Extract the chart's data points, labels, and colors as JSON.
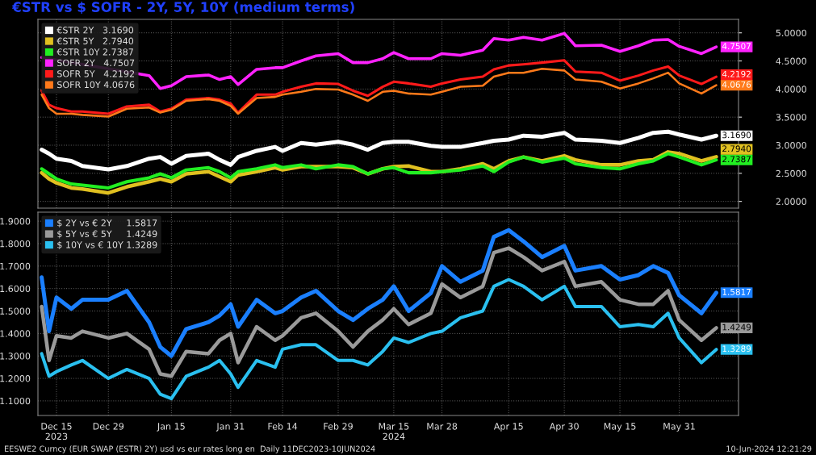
{
  "chart_data": [
    {
      "type": "line",
      "title": "€STR vs $ SOFR - 2Y, 5Y, 10Y (medium terms)",
      "tick_labels": "y",
      "grid": true,
      "legend": "top left",
      "x": [
        "2023-12-11",
        "2023-12-13",
        "2023-12-15",
        "2023-12-19",
        "2023-12-22",
        "2023-12-29",
        "2024-01-03",
        "2024-01-09",
        "2024-01-12",
        "2024-01-15",
        "2024-01-19",
        "2024-01-25",
        "2024-01-28",
        "2024-01-31",
        "2024-02-02",
        "2024-02-07",
        "2024-02-12",
        "2024-02-14",
        "2024-02-19",
        "2024-02-23",
        "2024-02-29",
        "2024-03-04",
        "2024-03-08",
        "2024-03-12",
        "2024-03-15",
        "2024-03-19",
        "2024-03-25",
        "2024-03-28",
        "2024-04-02",
        "2024-04-08",
        "2024-04-11",
        "2024-04-15",
        "2024-04-19",
        "2024-04-24",
        "2024-04-30",
        "2024-05-03",
        "2024-05-10",
        "2024-05-15",
        "2024-05-20",
        "2024-05-24",
        "2024-05-28",
        "2024-05-31",
        "2024-06-06",
        "2024-06-10"
      ],
      "xlim": [
        "2023-12-10",
        "2024-06-16"
      ],
      "xticks": [
        {
          "value": "2023-12-15",
          "label": null
        },
        {
          "value": "2023-12-29",
          "label": null
        },
        {
          "value": "2024-01-15",
          "label": null
        },
        {
          "value": "2024-01-31",
          "label": null
        },
        {
          "value": "2024-02-14",
          "label": null
        },
        {
          "value": "2024-02-29",
          "label": null
        },
        {
          "value": "2024-03-15",
          "label": null
        },
        {
          "value": "2024-03-28",
          "label": null
        },
        {
          "value": "2024-04-15",
          "label": null
        },
        {
          "value": "2024-04-30",
          "label": null
        },
        {
          "value": "2024-05-15",
          "label": null
        },
        {
          "value": "2024-05-31",
          "label": null
        }
      ],
      "ylim": [
        1.88,
        5.24
      ],
      "yticks": [
        {
          "value": 2.0,
          "label": "2.0000"
        },
        {
          "value": 2.5,
          "label": "2.5000"
        },
        {
          "value": 3.0,
          "label": "3.0000"
        },
        {
          "value": 3.5,
          "label": "3.5000"
        },
        {
          "value": 4.0,
          "label": "4.0000"
        },
        {
          "value": 4.5,
          "label": "4.5000"
        },
        {
          "value": 5.0,
          "label": "5.0000"
        }
      ],
      "series": [
        {
          "name": "€STR 2Y   3.1690",
          "color": "#ffffff",
          "values": [
            2.92,
            2.85,
            2.76,
            2.72,
            2.63,
            2.57,
            2.63,
            2.76,
            2.79,
            2.67,
            2.81,
            2.85,
            2.74,
            2.65,
            2.79,
            2.9,
            2.97,
            2.9,
            3.04,
            3.01,
            3.06,
            3.01,
            2.92,
            3.04,
            3.06,
            3.06,
            2.99,
            2.97,
            2.97,
            3.04,
            3.08,
            3.1,
            3.17,
            3.15,
            3.22,
            3.1,
            3.08,
            3.04,
            3.13,
            3.22,
            3.24,
            3.19,
            3.1,
            3.169
          ],
          "value_labels": [
            null,
            null,
            null,
            null,
            null,
            null,
            null,
            null,
            null,
            null,
            null,
            null,
            null,
            null,
            null,
            null,
            null,
            null,
            null,
            null,
            null,
            null,
            null,
            null,
            null,
            null,
            null,
            null,
            null,
            null,
            null,
            null,
            null,
            null,
            null,
            null,
            null,
            null,
            null,
            null,
            null,
            null,
            null,
            "3.1690"
          ]
        },
        {
          "name": "€STR 5Y   2.7940",
          "color": "#e0c020",
          "values": [
            2.51,
            2.4,
            2.33,
            2.24,
            2.22,
            2.15,
            2.26,
            2.35,
            2.4,
            2.35,
            2.49,
            2.53,
            2.44,
            2.35,
            2.47,
            2.53,
            2.6,
            2.56,
            2.62,
            2.62,
            2.62,
            2.6,
            2.49,
            2.58,
            2.62,
            2.63,
            2.53,
            2.53,
            2.58,
            2.67,
            2.58,
            2.72,
            2.79,
            2.72,
            2.81,
            2.74,
            2.65,
            2.65,
            2.72,
            2.74,
            2.88,
            2.85,
            2.72,
            2.794
          ],
          "value_labels": [
            null,
            null,
            null,
            null,
            null,
            null,
            null,
            null,
            null,
            null,
            null,
            null,
            null,
            null,
            null,
            null,
            null,
            null,
            null,
            null,
            null,
            null,
            null,
            null,
            null,
            null,
            null,
            null,
            null,
            null,
            null,
            null,
            null,
            null,
            null,
            null,
            null,
            null,
            null,
            null,
            null,
            null,
            null,
            "2.7940"
          ]
        },
        {
          "name": "€STR 10Y 2.7387",
          "color": "#22ee22",
          "values": [
            2.58,
            2.49,
            2.4,
            2.31,
            2.29,
            2.24,
            2.35,
            2.42,
            2.49,
            2.42,
            2.56,
            2.6,
            2.53,
            2.42,
            2.53,
            2.58,
            2.65,
            2.6,
            2.65,
            2.58,
            2.65,
            2.62,
            2.49,
            2.58,
            2.6,
            2.51,
            2.51,
            2.53,
            2.56,
            2.63,
            2.53,
            2.7,
            2.79,
            2.7,
            2.77,
            2.67,
            2.6,
            2.58,
            2.67,
            2.72,
            2.85,
            2.79,
            2.65,
            2.7387
          ],
          "value_labels": [
            null,
            null,
            null,
            null,
            null,
            null,
            null,
            null,
            null,
            null,
            null,
            null,
            null,
            null,
            null,
            null,
            null,
            null,
            null,
            null,
            null,
            null,
            null,
            null,
            null,
            null,
            null,
            null,
            null,
            null,
            null,
            null,
            null,
            null,
            null,
            null,
            null,
            null,
            null,
            null,
            null,
            null,
            null,
            "2.7387"
          ]
        },
        {
          "name": "SOFR 2Y   4.7507",
          "color": "#ff22ff",
          "values": [
            4.56,
            null,
            null,
            null,
            null,
            null,
            null,
            4.24,
            4.01,
            4.06,
            4.22,
            4.25,
            4.17,
            4.22,
            4.08,
            4.35,
            4.38,
            4.38,
            4.5,
            4.59,
            4.63,
            4.47,
            4.47,
            4.54,
            4.65,
            4.54,
            4.54,
            4.63,
            4.6,
            4.69,
            4.9,
            4.87,
            4.92,
            4.87,
            4.99,
            4.77,
            4.78,
            4.67,
            4.77,
            4.87,
            4.88,
            4.76,
            4.63,
            4.7507
          ],
          "value_labels": [
            null,
            null,
            null,
            null,
            null,
            null,
            null,
            null,
            null,
            null,
            null,
            null,
            null,
            null,
            null,
            null,
            null,
            null,
            null,
            null,
            null,
            null,
            null,
            null,
            null,
            null,
            null,
            null,
            null,
            null,
            null,
            null,
            null,
            null,
            null,
            null,
            null,
            null,
            null,
            null,
            null,
            null,
            null,
            "4.7507"
          ]
        },
        {
          "name": "SOFR 5Y   4.2192",
          "color": "#ff1a1a",
          "values": [
            3.97,
            3.72,
            3.66,
            3.6,
            3.6,
            3.56,
            3.69,
            3.72,
            3.6,
            3.65,
            3.81,
            3.84,
            3.81,
            3.74,
            3.58,
            3.9,
            3.9,
            3.95,
            4.04,
            4.1,
            4.09,
            3.97,
            3.88,
            4.04,
            4.13,
            4.1,
            4.04,
            4.1,
            4.17,
            4.22,
            4.35,
            4.42,
            4.44,
            4.47,
            4.51,
            4.31,
            4.29,
            4.15,
            4.24,
            4.33,
            4.4,
            4.24,
            4.09,
            4.2192
          ],
          "value_labels": [
            null,
            null,
            null,
            null,
            null,
            null,
            null,
            null,
            null,
            null,
            null,
            null,
            null,
            null,
            null,
            null,
            null,
            null,
            null,
            null,
            null,
            null,
            null,
            null,
            null,
            null,
            null,
            null,
            null,
            null,
            null,
            null,
            null,
            null,
            null,
            null,
            null,
            null,
            null,
            null,
            null,
            null,
            null,
            "4.2192"
          ]
        },
        {
          "name": "SOFR 10Y 4.0676",
          "color": "#ff7a1a",
          "values": [
            3.9,
            3.66,
            3.56,
            3.56,
            3.54,
            3.51,
            3.65,
            3.67,
            3.58,
            3.63,
            3.79,
            3.82,
            3.79,
            3.7,
            3.56,
            3.84,
            3.86,
            3.9,
            3.95,
            4.0,
            3.99,
            3.9,
            3.79,
            3.95,
            3.97,
            3.92,
            3.9,
            3.95,
            4.04,
            4.06,
            4.22,
            4.29,
            4.29,
            4.36,
            4.33,
            4.17,
            4.13,
            4.01,
            4.1,
            4.19,
            4.29,
            4.1,
            3.92,
            4.0676
          ],
          "value_labels": [
            null,
            null,
            null,
            null,
            null,
            null,
            null,
            null,
            null,
            null,
            null,
            null,
            null,
            null,
            null,
            null,
            null,
            null,
            null,
            null,
            null,
            null,
            null,
            null,
            null,
            null,
            null,
            null,
            null,
            null,
            null,
            null,
            null,
            null,
            null,
            null,
            null,
            null,
            null,
            null,
            null,
            null,
            null,
            "4.0676"
          ]
        }
      ]
    },
    {
      "type": "line",
      "grid": true,
      "legend": "top left",
      "x": [
        "2023-12-11",
        "2023-12-13",
        "2023-12-15",
        "2023-12-19",
        "2023-12-22",
        "2023-12-29",
        "2024-01-03",
        "2024-01-09",
        "2024-01-12",
        "2024-01-15",
        "2024-01-19",
        "2024-01-25",
        "2024-01-28",
        "2024-01-31",
        "2024-02-02",
        "2024-02-07",
        "2024-02-12",
        "2024-02-14",
        "2024-02-19",
        "2024-02-23",
        "2024-02-29",
        "2024-03-04",
        "2024-03-08",
        "2024-03-12",
        "2024-03-15",
        "2024-03-19",
        "2024-03-25",
        "2024-03-28",
        "2024-04-02",
        "2024-04-08",
        "2024-04-11",
        "2024-04-15",
        "2024-04-19",
        "2024-04-24",
        "2024-04-30",
        "2024-05-03",
        "2024-05-10",
        "2024-05-15",
        "2024-05-20",
        "2024-05-24",
        "2024-05-28",
        "2024-05-31",
        "2024-06-06",
        "2024-06-10"
      ],
      "xlim": [
        "2023-12-10",
        "2024-06-16"
      ],
      "xticks": [
        {
          "value": "2023-12-15",
          "label": "Dec 15\n2023"
        },
        {
          "value": "2023-12-29",
          "label": "Dec 29"
        },
        {
          "value": "2024-01-15",
          "label": "Jan 15"
        },
        {
          "value": "2024-01-31",
          "label": "Jan 31"
        },
        {
          "value": "2024-02-14",
          "label": "Feb 14"
        },
        {
          "value": "2024-02-29",
          "label": "Feb 29"
        },
        {
          "value": "2024-03-15",
          "label": "Mar 15\n2024"
        },
        {
          "value": "2024-03-28",
          "label": "Mar 28"
        },
        {
          "value": "2024-04-15",
          "label": "Apr 15"
        },
        {
          "value": "2024-04-30",
          "label": "Apr 30"
        },
        {
          "value": "2024-05-15",
          "label": "May 15"
        },
        {
          "value": "2024-05-31",
          "label": "May 31"
        }
      ],
      "ylim": [
        1.035,
        1.94
      ],
      "yticks": [
        {
          "value": 1.1,
          "label": "1.1000"
        },
        {
          "value": 1.2,
          "label": "1.2000"
        },
        {
          "value": 1.3,
          "label": "1.3000"
        },
        {
          "value": 1.4,
          "label": "1.4000"
        },
        {
          "value": 1.5,
          "label": "1.5000"
        },
        {
          "value": 1.6,
          "label": "1.6000"
        },
        {
          "value": 1.7,
          "label": "1.7000"
        },
        {
          "value": 1.8,
          "label": "1.8000"
        },
        {
          "value": 1.9,
          "label": "1.9000"
        }
      ],
      "series": [
        {
          "name": "$ 2Y vs € 2Y     1.5817",
          "color": "#1a7fff",
          "values": [
            1.65,
            1.41,
            1.56,
            1.51,
            1.55,
            1.55,
            1.59,
            1.45,
            1.34,
            1.3,
            1.42,
            1.45,
            1.48,
            1.53,
            1.43,
            1.55,
            1.49,
            1.5,
            1.56,
            1.59,
            1.5,
            1.46,
            1.51,
            1.55,
            1.61,
            1.5,
            1.58,
            1.7,
            1.63,
            1.68,
            1.83,
            1.86,
            1.81,
            1.74,
            1.79,
            1.68,
            1.7,
            1.64,
            1.66,
            1.7,
            1.67,
            1.57,
            1.49,
            1.5817
          ],
          "value_labels": [
            null,
            null,
            null,
            null,
            null,
            null,
            null,
            null,
            null,
            null,
            null,
            null,
            null,
            null,
            null,
            null,
            null,
            null,
            null,
            null,
            null,
            null,
            null,
            null,
            null,
            null,
            null,
            null,
            null,
            null,
            null,
            null,
            null,
            null,
            null,
            null,
            null,
            null,
            null,
            null,
            null,
            null,
            null,
            "1.5817"
          ]
        },
        {
          "name": "$ 5Y vs € 5Y     1.4249",
          "color": "#9a9a9a",
          "values": [
            1.52,
            1.28,
            1.39,
            1.38,
            1.41,
            1.38,
            1.4,
            1.33,
            1.22,
            1.21,
            1.32,
            1.31,
            1.37,
            1.4,
            1.27,
            1.43,
            1.37,
            1.39,
            1.47,
            1.49,
            1.41,
            1.34,
            1.41,
            1.46,
            1.51,
            1.44,
            1.49,
            1.62,
            1.56,
            1.61,
            1.76,
            1.78,
            1.74,
            1.68,
            1.72,
            1.61,
            1.63,
            1.55,
            1.53,
            1.53,
            1.59,
            1.46,
            1.37,
            1.4249
          ],
          "value_labels": [
            null,
            null,
            null,
            null,
            null,
            null,
            null,
            null,
            null,
            null,
            null,
            null,
            null,
            null,
            null,
            null,
            null,
            null,
            null,
            null,
            null,
            null,
            null,
            null,
            null,
            null,
            null,
            null,
            null,
            null,
            null,
            null,
            null,
            null,
            null,
            null,
            null,
            null,
            null,
            null,
            null,
            null,
            null,
            "1.4249"
          ]
        },
        {
          "name": "$ 10Y vs € 10Y 1.3289",
          "color": "#2ac0f0",
          "values": [
            1.31,
            1.21,
            1.23,
            1.26,
            1.28,
            1.2,
            1.24,
            1.2,
            1.13,
            1.11,
            1.21,
            1.25,
            1.28,
            1.22,
            1.16,
            1.28,
            1.25,
            1.33,
            1.35,
            1.35,
            1.28,
            1.28,
            1.26,
            1.32,
            1.38,
            1.36,
            1.4,
            1.41,
            1.47,
            1.5,
            1.61,
            1.64,
            1.61,
            1.55,
            1.61,
            1.52,
            1.52,
            1.43,
            1.44,
            1.43,
            1.49,
            1.38,
            1.27,
            1.3289
          ],
          "value_labels": [
            null,
            null,
            null,
            null,
            null,
            null,
            null,
            null,
            null,
            null,
            null,
            null,
            null,
            null,
            null,
            null,
            null,
            null,
            null,
            null,
            null,
            null,
            null,
            null,
            null,
            null,
            null,
            null,
            null,
            null,
            null,
            null,
            null,
            null,
            null,
            null,
            null,
            null,
            null,
            null,
            null,
            null,
            null,
            "1.3289"
          ]
        }
      ],
      "annotations": [
        "EESWE2 Curncy (EUR SWAP (ESTR) 2Y) usd vs eur rates long en  Daily 11DEC2023-10JUN2024",
        "10-Jun-2024 12:21:29"
      ]
    }
  ]
}
